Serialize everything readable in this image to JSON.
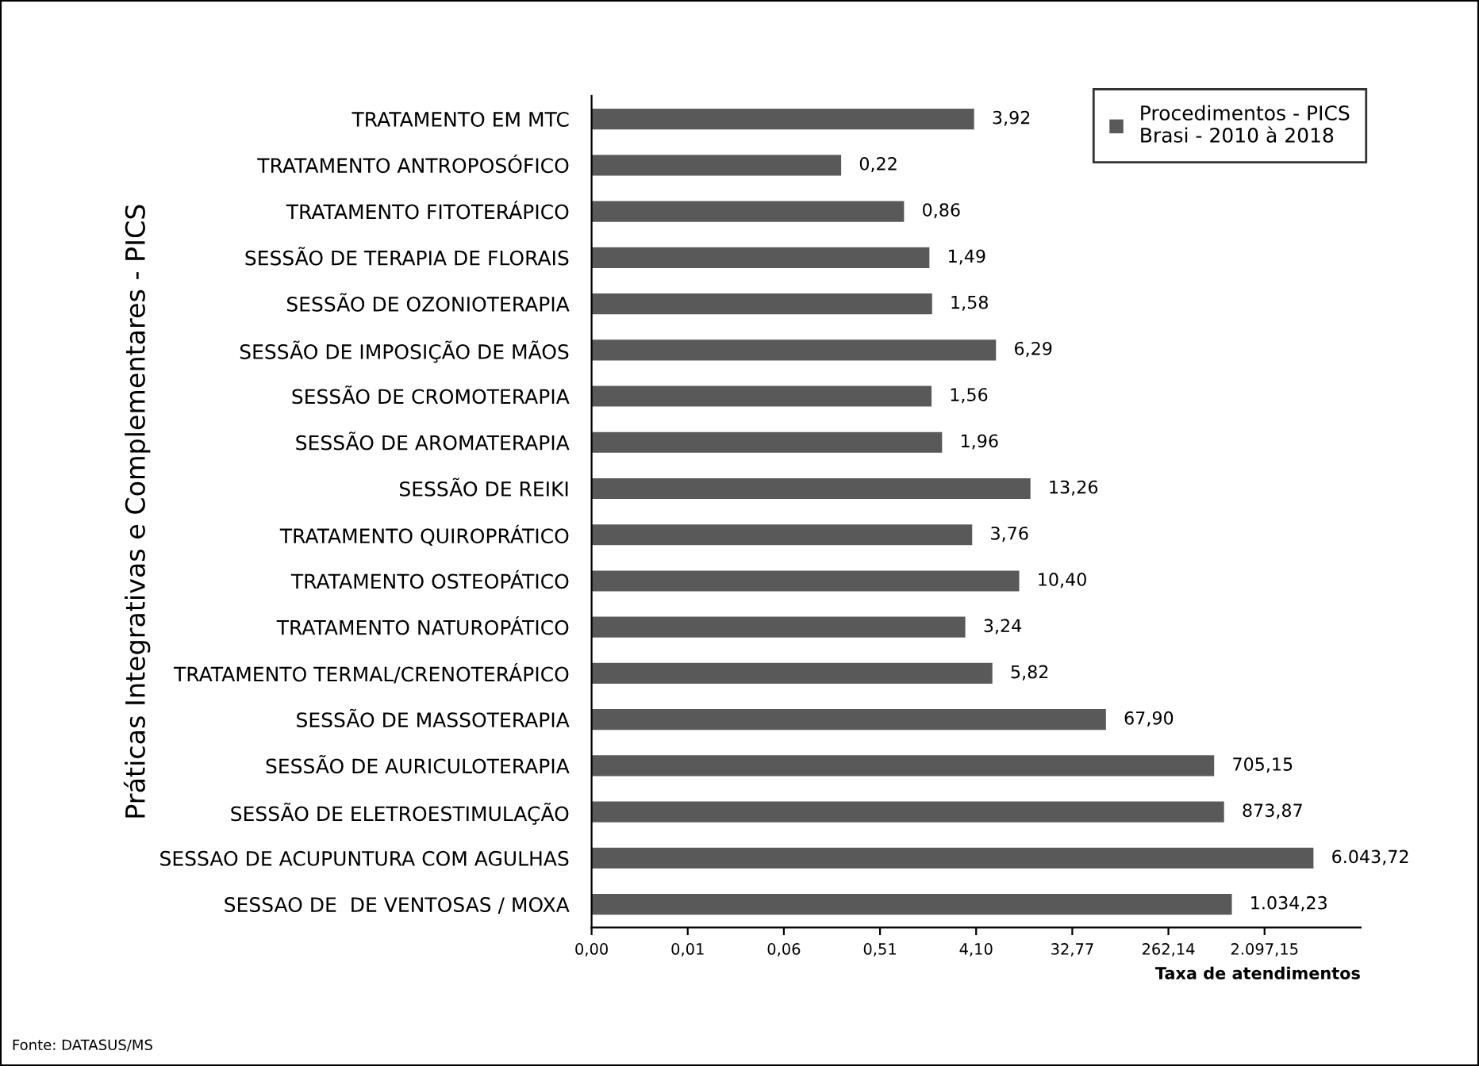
{
  "chart_data": {
    "type": "bar",
    "orientation": "horizontal",
    "log": "x",
    "ylabel": "Práticas Integrativas e Complementares - PICS",
    "xlabel": "Taxa de atendimentos",
    "categories": [
      "TRATAMENTO EM MTC",
      "TRATAMENTO ANTROPOSÓFICO",
      "TRATAMENTO FITOTERÁPICO",
      "SESSÃO DE TERAPIA DE FLORAIS",
      "SESSÃO DE OZONIOTERAPIA",
      "SESSÃO DE IMPOSIÇÃO DE MÃOS",
      "SESSÃO DE CROMOTERAPIA",
      "SESSÃO DE AROMATERAPIA",
      "SESSÃO DE REIKI",
      "TRATAMENTO QUIROPRÁTICO",
      "TRATAMENTO OSTEOPÁTICO",
      "TRATAMENTO NATUROPÁTICO",
      "TRATAMENTO TERMAL/CRENOTERÁPICO",
      "SESSÃO DE MASSOTERAPIA",
      "SESSÃO DE AURICULOTERAPIA",
      "SESSÃO DE ELETROESTIMULAÇÃO",
      "SESSAO DE ACUPUNTURA COM AGULHAS",
      "SESSAO DE  DE VENTOSAS / MOXA"
    ],
    "series": [
      {
        "name": "Procedimentos - PICS\nBrasi - 2010 à 2018",
        "color": "#595959",
        "values": [
          3.92,
          0.22,
          0.86,
          1.49,
          1.58,
          6.29,
          1.56,
          1.96,
          13.26,
          3.76,
          10.4,
          3.24,
          5.82,
          67.9,
          705.15,
          873.87,
          6043.72,
          1034.23
        ],
        "value_labels": [
          "3,92",
          "0,22",
          "0,86",
          "1,49",
          "1,58",
          "6,29",
          "1,56",
          "1,96",
          "13,26",
          "3,76",
          "10,40",
          "3,24",
          "5,82",
          "67,90",
          "705,15",
          "873,87",
          "6.043,72",
          "1.034,23"
        ]
      }
    ],
    "xlim": [
      0.001,
      16777.216
    ],
    "xticks": [
      {
        "value": 0.001,
        "label": "0,00"
      },
      {
        "value": 0.008,
        "label": "0,01"
      },
      {
        "value": 0.064,
        "label": "0,06"
      },
      {
        "value": 0.512,
        "label": "0,51"
      },
      {
        "value": 4.096,
        "label": "4,10"
      },
      {
        "value": 32.768,
        "label": "32,77"
      },
      {
        "value": 262.144,
        "label": "262,14"
      },
      {
        "value": 2097.152,
        "label": "2.097,15"
      }
    ],
    "grid": false,
    "legend": "top right",
    "annotations": [
      "Fonte: DATASUS/MS"
    ]
  }
}
